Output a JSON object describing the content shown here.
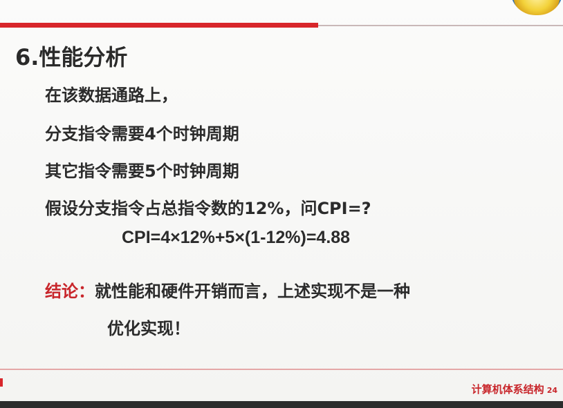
{
  "slide": {
    "title": "6.性能分析",
    "lines": [
      "在该数据通路上，",
      "分支指令需要4个时钟周期",
      "其它指令需要5个时钟周期",
      "假设分支指令占总指令数的12%，问CPI=?"
    ],
    "formula": "CPI=4×12%+5×(1-12%)=4.88",
    "conclusion_label": "结论：",
    "conclusion_text_1": "就性能和硬件开销而言，上述实现不是一种",
    "conclusion_text_2": "优化实现！"
  },
  "footer": {
    "course": "计算机体系结构",
    "page": "24"
  },
  "colors": {
    "accent_red": "#d8262b",
    "text": "#2b2b2b"
  }
}
